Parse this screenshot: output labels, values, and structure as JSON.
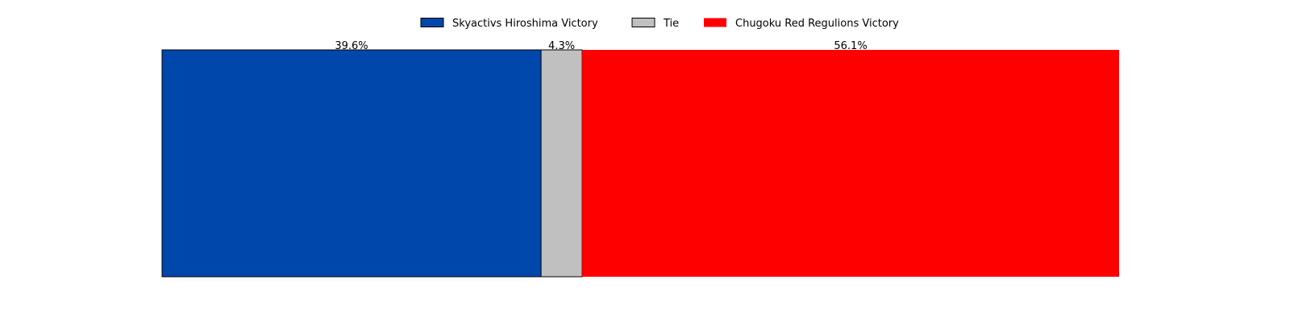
{
  "chart_data": {
    "type": "bar",
    "orientation": "horizontal-stacked",
    "title": "",
    "xlabel": "",
    "ylabel": "",
    "categories": [
      ""
    ],
    "series": [
      {
        "name": "Skyactivs Hiroshima Victory",
        "values": [
          39.6
        ],
        "color": "#0047AB",
        "label": "39.6%"
      },
      {
        "name": "Tie",
        "values": [
          4.3
        ],
        "color": "#C0C0C0",
        "label": "4.3%"
      },
      {
        "name": "Chugoku Red Regulions Victory",
        "values": [
          56.1
        ],
        "color": "#FF0000",
        "label": "56.1%"
      }
    ],
    "xlim": [
      0,
      100
    ],
    "grid": false,
    "axes_visible": false,
    "legend_placement": "top-center"
  }
}
